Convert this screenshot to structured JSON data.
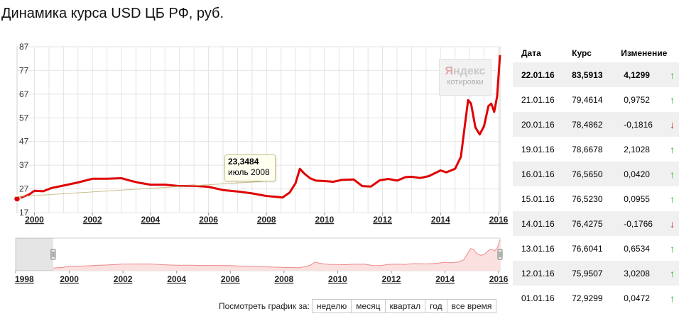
{
  "title": "Динамика курса USD ЦБ РФ, руб.",
  "logo": {
    "brand_first": "Я",
    "brand_rest": "ндекс",
    "subtitle": "котировки"
  },
  "tooltip": {
    "value": "23,3484",
    "date": "июль 2008"
  },
  "table": {
    "headers": {
      "date": "Дата",
      "rate": "Курс",
      "change": "Изменение"
    },
    "rows": [
      {
        "date": "22.01.16",
        "rate": "83,5913",
        "change": "4,1299",
        "dir": "up"
      },
      {
        "date": "21.01.16",
        "rate": "79,4614",
        "change": "0,9752",
        "dir": "up"
      },
      {
        "date": "20.01.16",
        "rate": "78,4862",
        "change": "-0,1816",
        "dir": "down"
      },
      {
        "date": "19.01.16",
        "rate": "78,6678",
        "change": "2,1028",
        "dir": "up"
      },
      {
        "date": "16.01.16",
        "rate": "76,5650",
        "change": "0,0420",
        "dir": "up"
      },
      {
        "date": "15.01.16",
        "rate": "76,5230",
        "change": "0,0955",
        "dir": "up"
      },
      {
        "date": "14.01.16",
        "rate": "76,4275",
        "change": "-0,1766",
        "dir": "down"
      },
      {
        "date": "13.01.16",
        "rate": "76,6041",
        "change": "0,6534",
        "dir": "up"
      },
      {
        "date": "12.01.16",
        "rate": "75,9507",
        "change": "3,0208",
        "dir": "up"
      },
      {
        "date": "01.01.16",
        "rate": "72,9299",
        "change": "0,0472",
        "dir": "up"
      }
    ]
  },
  "range_selector": {
    "label": "Посмотреть график за:",
    "buttons": [
      "неделю",
      "месяц",
      "квартал",
      "год",
      "все время"
    ]
  },
  "colors": {
    "line": "#e00000",
    "grid": "#e4e4e4",
    "up": "#2eb82e",
    "down": "#d62020"
  },
  "chart_data": {
    "type": "line",
    "series": [
      {
        "x": [
          1999.4,
          1999.6,
          1999.8,
          2000.0,
          2000.3,
          2000.6,
          2001.0,
          2001.5,
          2002.0,
          2002.5,
          2003.0,
          2003.3,
          2003.6,
          2004.0,
          2004.5,
          2005.0,
          2005.5,
          2006.0,
          2006.5,
          2007.0,
          2007.5,
          2008.0,
          2008.3,
          2008.55,
          2008.8,
          2009.0,
          2009.15,
          2009.3,
          2009.5,
          2009.7,
          2010.0,
          2010.3,
          2010.6,
          2011.0,
          2011.3,
          2011.6,
          2011.9,
          2012.2,
          2012.5,
          2012.8,
          2013.0,
          2013.3,
          2013.6,
          2014.0,
          2014.2,
          2014.5,
          2014.7,
          2014.85,
          2014.95,
          2015.05,
          2015.2,
          2015.35,
          2015.5,
          2015.65,
          2015.75,
          2015.85,
          2015.95,
          2016.05
        ],
        "y": [
          22.8,
          23.6,
          24.5,
          26.2,
          26.0,
          27.4,
          28.4,
          29.7,
          31.3,
          31.3,
          31.5,
          30.5,
          29.6,
          28.8,
          28.8,
          28.2,
          28.3,
          27.9,
          26.5,
          25.9,
          25.1,
          24.0,
          23.7,
          23.35,
          25.5,
          29.4,
          35.5,
          33.5,
          31.5,
          30.5,
          30.3,
          30.0,
          30.8,
          31.0,
          28.2,
          28.0,
          30.6,
          31.2,
          30.5,
          32.0,
          32.1,
          31.6,
          32.4,
          34.8,
          34.0,
          35.5,
          40.5,
          55.0,
          64.5,
          63.0,
          53.0,
          50.0,
          53.5,
          62.0,
          63.0,
          59.5,
          66.0,
          83.5
        ]
      }
    ],
    "x_ticks": [
      "2000",
      "2002",
      "2004",
      "2006",
      "2008",
      "2010",
      "2012",
      "2014",
      "2016"
    ],
    "y_ticks": [
      "17",
      "27",
      "37",
      "47",
      "57",
      "67",
      "77",
      "87"
    ],
    "xlim": [
      1999.4,
      2016.05
    ],
    "ylim": [
      17,
      87
    ],
    "grid": true,
    "navigator": {
      "x_ticks": [
        "1998",
        "2000",
        "2002",
        "2004",
        "2006",
        "2008",
        "2010",
        "2012",
        "2014",
        "2016"
      ],
      "xlim": [
        1998.0,
        2016.05
      ]
    }
  }
}
